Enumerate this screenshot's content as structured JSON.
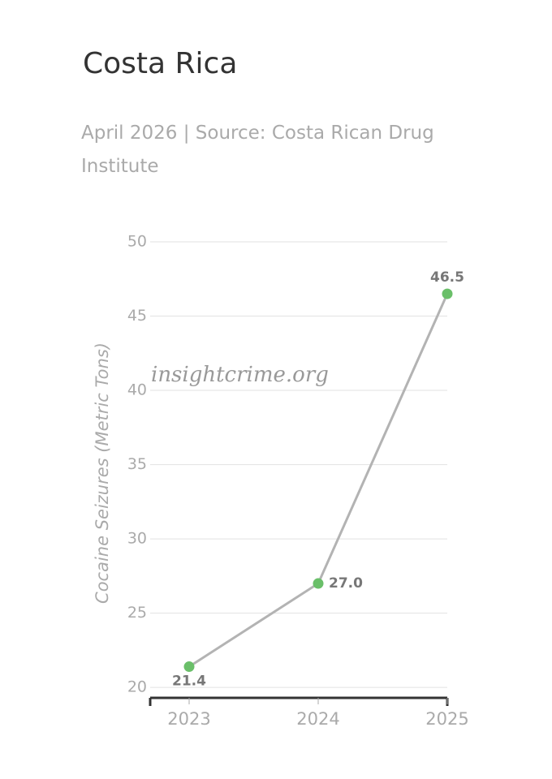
{
  "chart_data": {
    "type": "line",
    "title": "Costa Rica",
    "subtitle": "April 2026 | Source: Costa Rican Drug Institute",
    "y_label": "Cocaine Seizures (Metric Tons)",
    "watermark": "insightcrime.org",
    "categories": [
      "2023",
      "2024",
      "2025"
    ],
    "values": [
      21.4,
      27.0,
      46.5
    ],
    "value_labels": [
      "21.4",
      "27.0",
      "46.5"
    ],
    "line_color": "#b3b3b3",
    "marker_color": "#6abf69",
    "ylim": [
      19.3,
      50
    ],
    "yticks": [
      20,
      25,
      30,
      35,
      40,
      45,
      50
    ],
    "grid": true
  }
}
